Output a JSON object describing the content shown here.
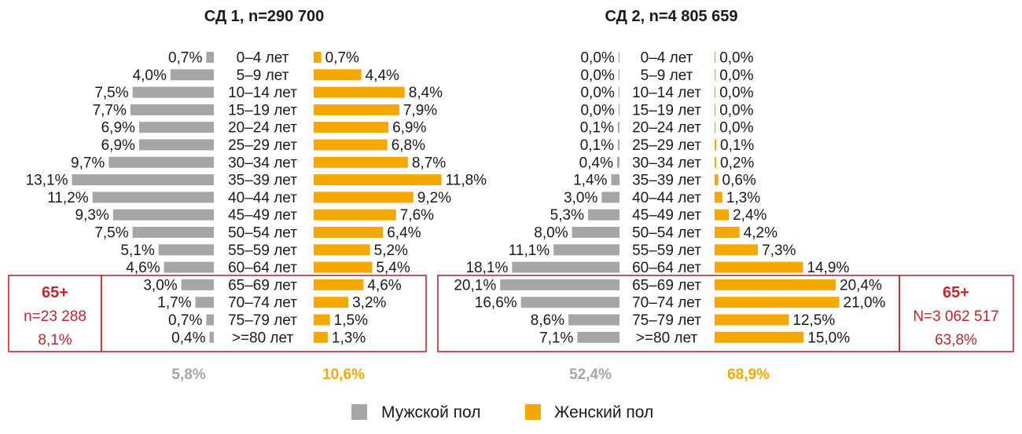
{
  "colors": {
    "male": "#a6a6a6",
    "female": "#f5a800",
    "box": "#c0282d",
    "label_red": "#c0282d",
    "text": "#1a1a1a"
  },
  "age_groups": [
    "0–4 лет",
    "5–9 лет",
    "10–14 лет",
    "15–19 лет",
    "20–24 лет",
    "25–29 лет",
    "30–34 лет",
    "35–39 лет",
    "40–44 лет",
    "45–49 лет",
    "50–54 лет",
    "55–59 лет",
    "60–64 лет",
    "65–69 лет",
    "70–74 лет",
    "75–79 лет",
    ">=80 лет"
  ],
  "chart_data": [
    {
      "type": "bar",
      "title": "СД 1, n=290 700",
      "male": [
        0.7,
        4.0,
        7.5,
        7.7,
        6.9,
        6.9,
        9.7,
        13.1,
        11.2,
        9.3,
        7.5,
        5.1,
        4.6,
        3.0,
        1.7,
        0.7,
        0.4
      ],
      "female": [
        0.7,
        4.4,
        8.4,
        7.9,
        6.9,
        6.8,
        8.7,
        11.8,
        9.2,
        7.6,
        6.4,
        5.2,
        5.4,
        4.6,
        3.2,
        1.5,
        1.3
      ],
      "male_labels": [
        "0,7%",
        "4,0%",
        "7,5%",
        "7,7%",
        "6,9%",
        "6,9%",
        "9,7%",
        "13,1%",
        "11,2%",
        "9,3%",
        "7,5%",
        "5,1%",
        "4,6%",
        "3,0%",
        "1,7%",
        "0,7%",
        "0,4%"
      ],
      "female_labels": [
        "0,7%",
        "4,4%",
        "8,4%",
        "7,9%",
        "6,9%",
        "6,8%",
        "8,7%",
        "11,8%",
        "9,2%",
        "7,6%",
        "6,4%",
        "5,2%",
        "5,4%",
        "4,6%",
        "3,2%",
        "1,5%",
        "1,3%"
      ],
      "senior_box": {
        "title": "65+",
        "n": "n=23 288",
        "share": "8,1%",
        "side": "left"
      },
      "male_senior_share": "5,8%",
      "female_senior_share": "10,6%"
    },
    {
      "type": "bar",
      "title": "СД 2, n=4 805 659",
      "male": [
        0.0,
        0.0,
        0.0,
        0.0,
        0.1,
        0.1,
        0.4,
        1.4,
        3.0,
        5.3,
        8.0,
        11.1,
        18.1,
        20.1,
        16.6,
        8.6,
        7.1
      ],
      "female": [
        0.0,
        0.0,
        0.0,
        0.0,
        0.0,
        0.1,
        0.2,
        0.6,
        1.3,
        2.4,
        4.2,
        7.3,
        14.9,
        20.4,
        21.0,
        12.5,
        15.0
      ],
      "male_labels": [
        "0,0%",
        "0,0%",
        "0,0%",
        "0,0%",
        "0,1%",
        "0,1%",
        "0,4%",
        "1,4%",
        "3,0%",
        "5,3%",
        "8,0%",
        "11,1%",
        "18,1%",
        "20,1%",
        "16,6%",
        "8,6%",
        "7,1%"
      ],
      "female_labels": [
        "0,0%",
        "0,0%",
        "0,0%",
        "0,0%",
        "0,0%",
        "0,1%",
        "0,2%",
        "0,6%",
        "1,3%",
        "2,4%",
        "4,2%",
        "7,3%",
        "14,9%",
        "20,4%",
        "21,0%",
        "12,5%",
        "15,0%"
      ],
      "senior_box": {
        "title": "65+",
        "n": "N=3 062 517",
        "share": "63,8%",
        "side": "right"
      },
      "male_senior_share": "52,4%",
      "female_senior_share": "68,9%"
    }
  ],
  "legend": {
    "male": "Мужской пол",
    "female": "Женский пол"
  }
}
